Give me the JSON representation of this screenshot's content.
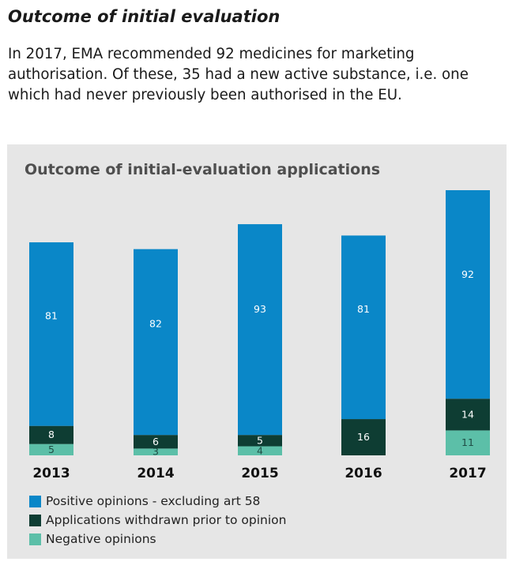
{
  "page": {
    "heading": "Outcome of initial evaluation",
    "intro": "In 2017, EMA recommended 92 medicines for marketing authorisation. Of these, 35 had a new active substance, i.e. one which had never previously been authorised in the EU."
  },
  "chart_data": {
    "type": "bar",
    "stacked": true,
    "title": "Outcome of initial-evaluation applications",
    "categories": [
      "2013",
      "2014",
      "2015",
      "2016",
      "2017"
    ],
    "series": [
      {
        "name": "Negative opinions",
        "values": [
          5,
          3,
          4,
          0,
          11
        ],
        "color": "#5cbfa8"
      },
      {
        "name": "Applications withdrawn prior to opinion",
        "values": [
          8,
          6,
          5,
          16,
          14
        ],
        "color": "#0e3d33"
      },
      {
        "name": "Positive opinions - excluding art 58",
        "values": [
          81,
          82,
          93,
          81,
          92
        ],
        "color": "#0a87c8"
      }
    ],
    "legend": [
      {
        "label": "Positive opinions - excluding art 58",
        "color": "#0a87c8"
      },
      {
        "label": "Applications withdrawn prior to opinion",
        "color": "#0e3d33"
      },
      {
        "label": "Negative opinions",
        "color": "#5cbfa8"
      }
    ],
    "xlabel": "",
    "ylabel": "",
    "ylim": [
      0,
      117
    ]
  }
}
